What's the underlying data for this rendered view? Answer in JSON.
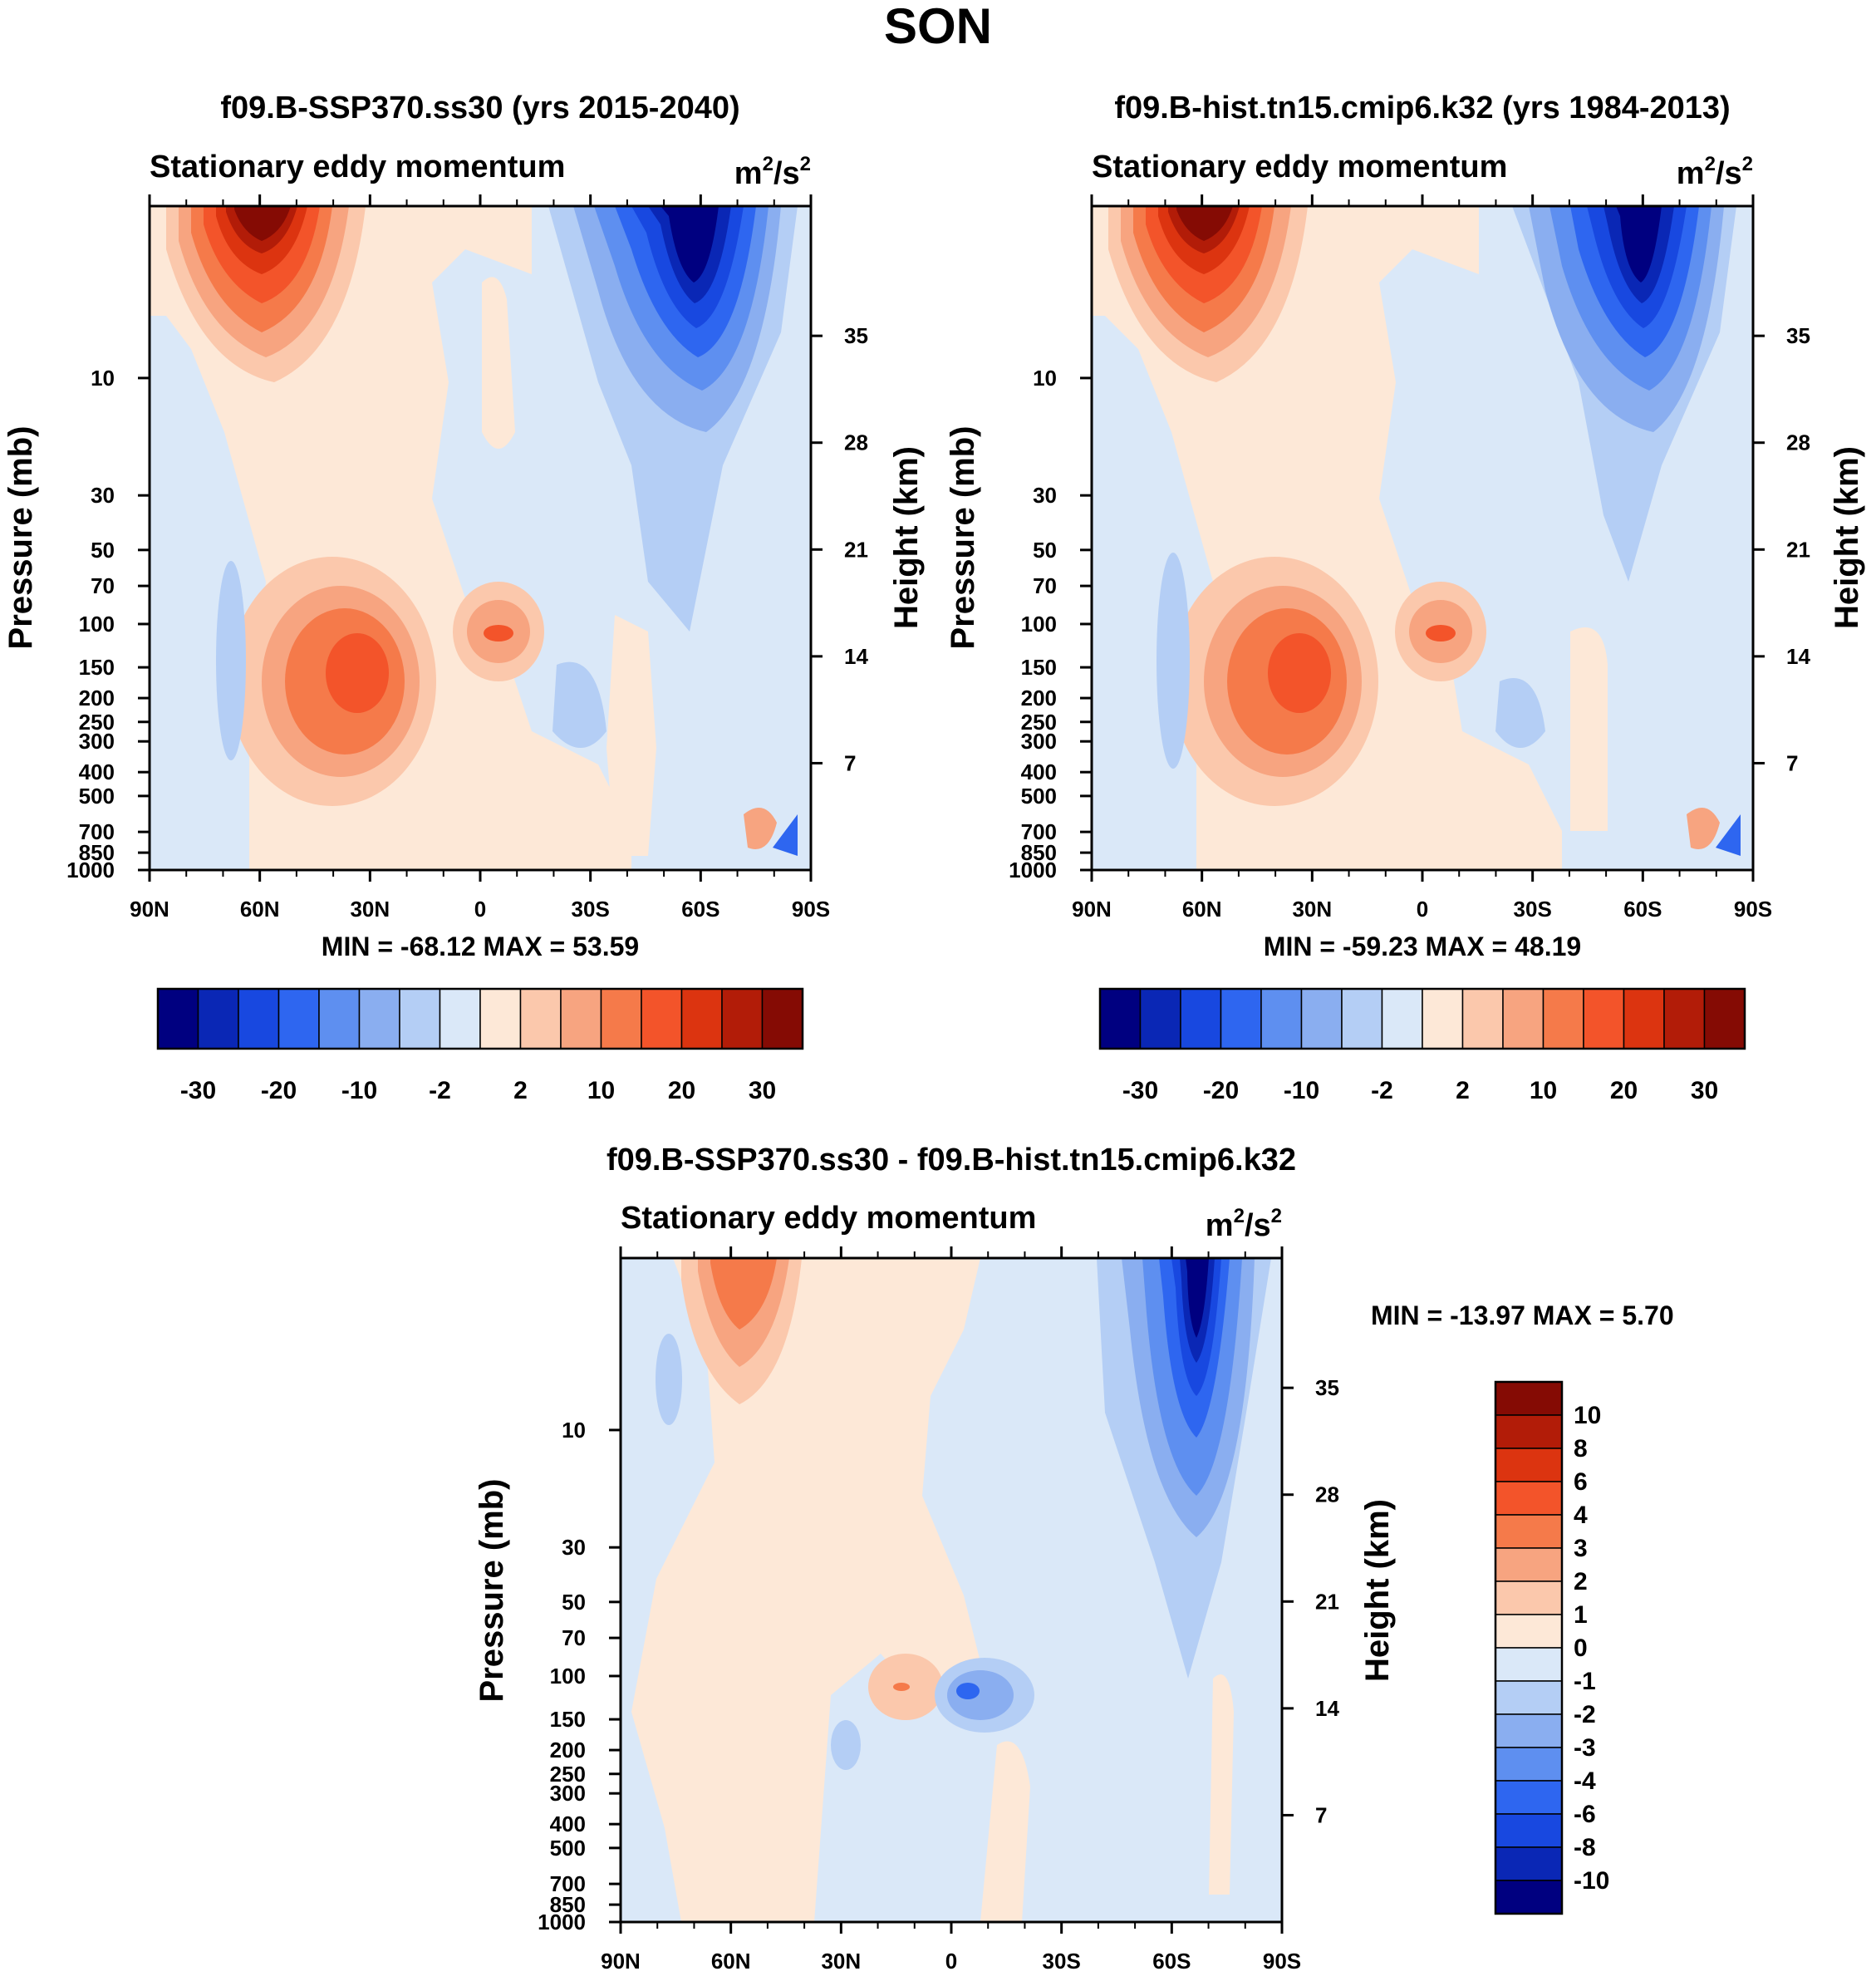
{
  "main_title": "SON",
  "colors": {
    "cb15": [
      "#000080",
      "#0a27b5",
      "#1848e0",
      "#2e66f0",
      "#5e8ff0",
      "#8aaef0",
      "#b4cef5",
      "#dae8f8",
      "#fde8d7",
      "#fbc8ac",
      "#f7a480",
      "#f57a4a",
      "#f3542a",
      "#dc3410",
      "#b21c08",
      "#850b04"
    ],
    "cb16": [
      "#000080",
      "#0a27b5",
      "#1848e0",
      "#2e66f0",
      "#5e8ff0",
      "#8aaef0",
      "#b4cef5",
      "#dae8f8",
      "#fde8d7",
      "#fbc8ac",
      "#f7a480",
      "#f57a4a",
      "#f3542a",
      "#dc3410",
      "#b21c08",
      "#850b04"
    ]
  },
  "chart_data": [
    {
      "type": "contour",
      "title": "f09.B-SSP370.ss30 (yrs 2015-2040)",
      "subtitle": "Stationary eddy momentum",
      "units_base": "m",
      "units_sup1": "2",
      "units_mid": "/s",
      "units_sup2": "2",
      "ylabel": "Pressure (mb)",
      "y2label": "Height (km)",
      "xticks": [
        "90N",
        "60N",
        "30N",
        "0",
        "30S",
        "60S",
        "90S"
      ],
      "yticks": [
        "10",
        "30",
        "50",
        "70",
        "100",
        "150",
        "200",
        "250",
        "300",
        "400",
        "500",
        "700",
        "850",
        "1000"
      ],
      "y2ticks": [
        "35",
        "28",
        "21",
        "14",
        "7"
      ],
      "min_text": "MIN = -68.12  MAX =  53.59",
      "colorbar_levels": [
        "-30",
        "-20",
        "-10",
        "-2",
        "2",
        "10",
        "20",
        "30"
      ],
      "features": [
        {
          "name": "nh-stratospheric-max",
          "lat": 57,
          "p": 3,
          "value": 35
        },
        {
          "name": "nh-subtropical-max",
          "lat": 30,
          "p": 200,
          "value": 20
        },
        {
          "name": "equatorial-max",
          "lat": -5,
          "p": 150,
          "value": 10
        },
        {
          "name": "sh-stratospheric-min",
          "lat": -60,
          "p": 3,
          "value": -40
        }
      ]
    },
    {
      "type": "contour",
      "title": "f09.B-hist.tn15.cmip6.k32 (yrs 1984-2013)",
      "subtitle": "Stationary eddy momentum",
      "units_base": "m",
      "units_sup1": "2",
      "units_mid": "/s",
      "units_sup2": "2",
      "ylabel": "Pressure (mb)",
      "y2label": "Height (km)",
      "xticks": [
        "90N",
        "60N",
        "30N",
        "0",
        "30S",
        "60S",
        "90S"
      ],
      "yticks": [
        "10",
        "30",
        "50",
        "70",
        "100",
        "150",
        "200",
        "250",
        "300",
        "400",
        "500",
        "700",
        "850",
        "1000"
      ],
      "y2ticks": [
        "35",
        "28",
        "21",
        "14",
        "7"
      ],
      "min_text": "MIN = -59.23  MAX =  48.19",
      "colorbar_levels": [
        "-30",
        "-20",
        "-10",
        "-2",
        "2",
        "10",
        "20",
        "30"
      ],
      "features": [
        {
          "name": "nh-stratospheric-max",
          "lat": 57,
          "p": 3,
          "value": 35
        },
        {
          "name": "nh-subtropical-max",
          "lat": 30,
          "p": 200,
          "value": 20
        },
        {
          "name": "equatorial-max",
          "lat": -5,
          "p": 150,
          "value": 10
        },
        {
          "name": "sh-stratospheric-min",
          "lat": -60,
          "p": 3,
          "value": -35
        }
      ]
    },
    {
      "type": "contour",
      "title": "f09.B-SSP370.ss30 - f09.B-hist.tn15.cmip6.k32",
      "subtitle": "Stationary eddy momentum",
      "units_base": "m",
      "units_sup1": "2",
      "units_mid": "/s",
      "units_sup2": "2",
      "ylabel": "Pressure (mb)",
      "y2label": "Height (km)",
      "xticks": [
        "90N",
        "60N",
        "30N",
        "0",
        "30S",
        "60S",
        "90S"
      ],
      "yticks": [
        "10",
        "30",
        "50",
        "70",
        "100",
        "150",
        "200",
        "250",
        "300",
        "400",
        "500",
        "700",
        "850",
        "1000"
      ],
      "y2ticks": [
        "35",
        "28",
        "21",
        "14",
        "7"
      ],
      "min_text": "MIN = -13.97  MAX =   5.70",
      "colorbar_levels": [
        "10",
        "8",
        "6",
        "4",
        "3",
        "2",
        "1",
        "0",
        "-1",
        "-2",
        "-3",
        "-4",
        "-6",
        "-8",
        "-10"
      ],
      "features": [
        {
          "name": "nh-stratospheric-max",
          "lat": 57,
          "p": 3,
          "value": 4
        },
        {
          "name": "tropical-max",
          "lat": 15,
          "p": 150,
          "value": 2
        },
        {
          "name": "equatorial-min",
          "lat": -5,
          "p": 150,
          "value": -3
        },
        {
          "name": "sh-stratospheric-min",
          "lat": -70,
          "p": 3,
          "value": -12
        }
      ]
    }
  ]
}
